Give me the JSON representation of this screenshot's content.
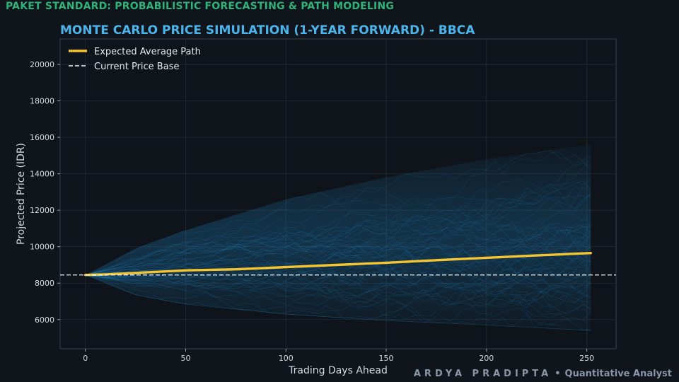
{
  "header": {
    "label": "PAKET STANDARD: PROBABILISTIC FORECASTING & PATH MODELING"
  },
  "footer": {
    "name": "ARDYA PRADIPTA",
    "separator": "•",
    "role": "Quantitative Analyst"
  },
  "colors": {
    "background": "#10141b",
    "plot_background": "#0f141b",
    "accent_title": "#4cb3ea",
    "header_green": "#2fb37a",
    "mean_path": "#f5c431",
    "base_line": "#ffffff",
    "simulation_paths": "#1e88c8"
  },
  "chart_data": {
    "type": "line",
    "title": "MONTE CARLO PRICE SIMULATION (1-YEAR FORWARD) - BBCA",
    "xlabel": "Trading Days Ahead",
    "ylabel": "Projected Price (IDR)",
    "xlim": [
      -12.6,
      264.6
    ],
    "ylim": [
      4400,
      21400
    ],
    "x_ticks": [
      0,
      50,
      100,
      150,
      200,
      250
    ],
    "y_ticks": [
      6000,
      8000,
      10000,
      12000,
      14000,
      16000,
      18000,
      20000
    ],
    "grid": true,
    "legend_position": "top-left",
    "current_price": 8450,
    "series": [
      {
        "name": "Expected Average Path",
        "style": "solid",
        "x": [
          0,
          10,
          25,
          50,
          75,
          100,
          125,
          150,
          175,
          200,
          225,
          252
        ],
        "values": [
          8450,
          8480,
          8560,
          8700,
          8760,
          8880,
          9000,
          9120,
          9260,
          9390,
          9520,
          9650
        ]
      },
      {
        "name": "Current Price Base",
        "style": "dashed",
        "x": [
          -12.6,
          264.6
        ],
        "values": [
          8450,
          8450
        ]
      }
    ],
    "simulation_envelope": {
      "x": [
        0,
        25,
        50,
        100,
        150,
        200,
        252
      ],
      "upper": [
        8450,
        9900,
        10900,
        12600,
        13800,
        14800,
        15600
      ],
      "lower": [
        8450,
        7350,
        6850,
        6300,
        5950,
        5700,
        5400
      ]
    }
  }
}
